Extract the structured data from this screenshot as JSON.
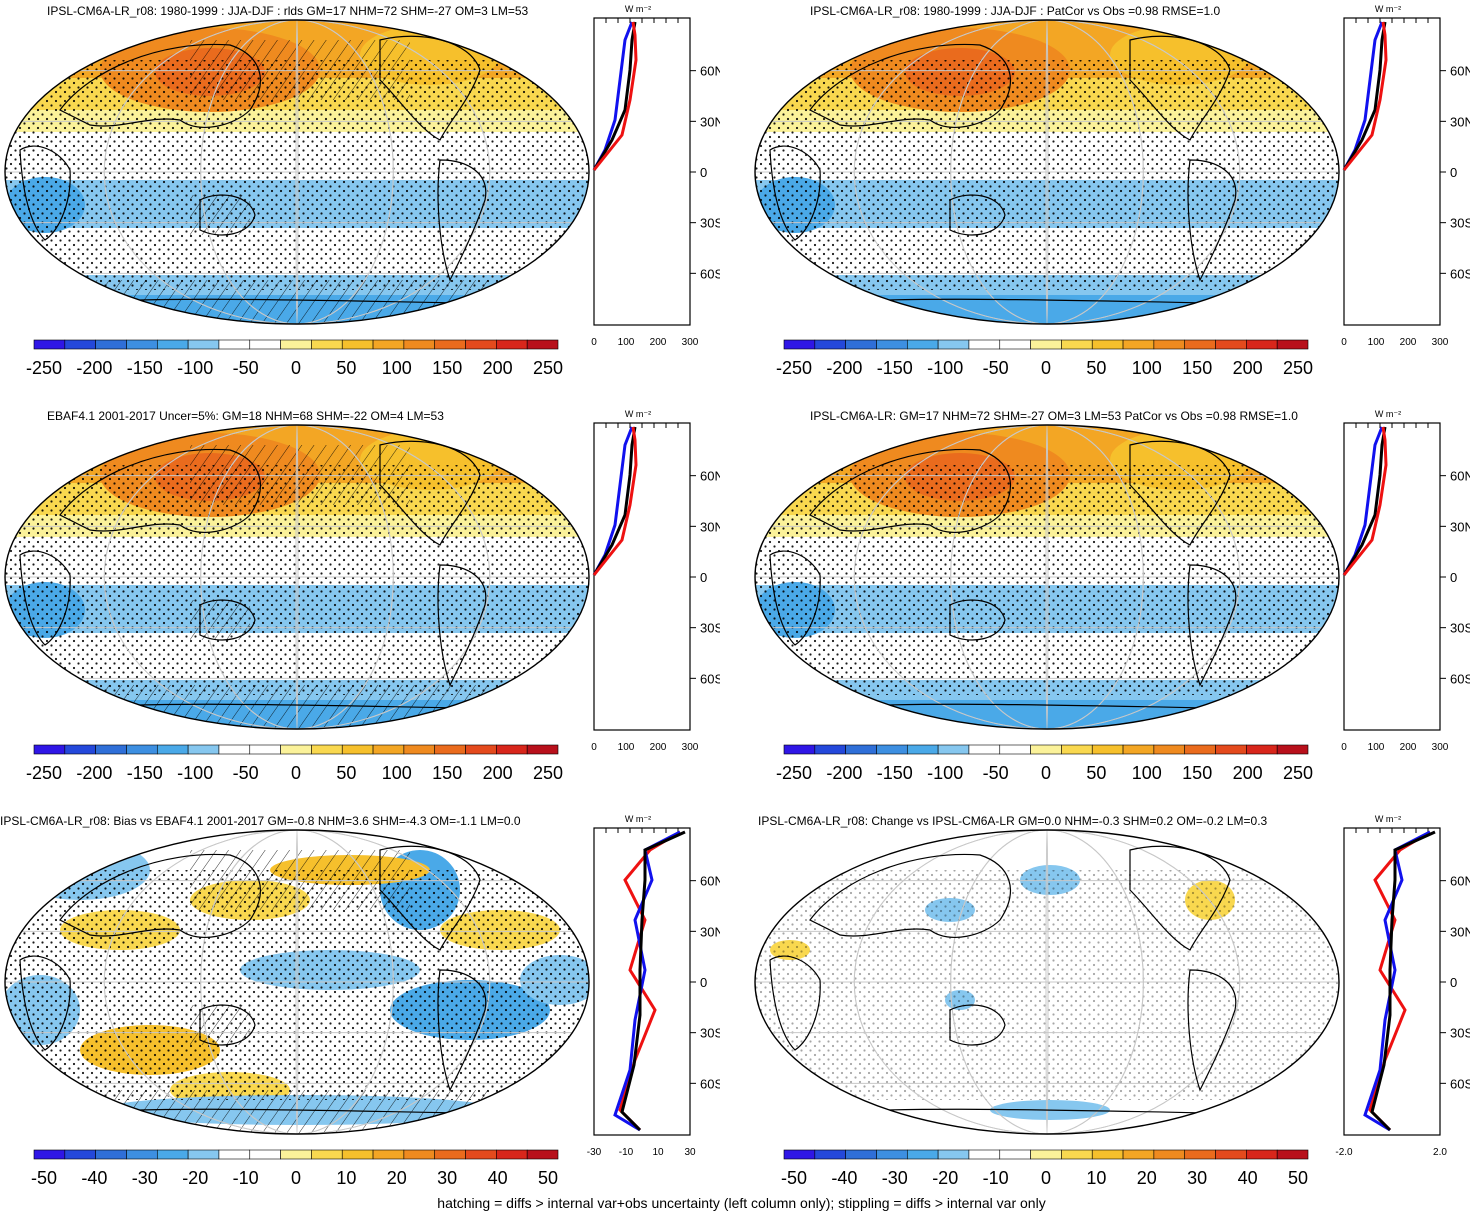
{
  "panels": [
    {
      "title": "IPSL-CM6A-LR_r08: 1980-1999 : JJA-DJF : rlds GM=17 NHM=72 SHM=-27 OM=3 LM=53",
      "colorbar": [
        "-250",
        "-200",
        "-150",
        "-100",
        "-50",
        "0",
        "50",
        "100",
        "150",
        "200",
        "250"
      ],
      "profile_xticks": [
        "0",
        "100",
        "200",
        "300"
      ]
    },
    {
      "title": "IPSL-CM6A-LR_r08: 1980-1999 : JJA-DJF : PatCor vs Obs =0.98 RMSE=1.0",
      "colorbar": [
        "-250",
        "-200",
        "-150",
        "-100",
        "-50",
        "0",
        "50",
        "100",
        "150",
        "200",
        "250"
      ],
      "profile_xticks": [
        "0",
        "100",
        "200",
        "300"
      ]
    },
    {
      "title": "EBAF4.1 2001-2017 Uncer=5%: GM=18 NHM=68 SHM=-22 OM=4 LM=53",
      "colorbar": [
        "-250",
        "-200",
        "-150",
        "-100",
        "-50",
        "0",
        "50",
        "100",
        "150",
        "200",
        "250"
      ],
      "profile_xticks": [
        "0",
        "100",
        "200",
        "300"
      ]
    },
    {
      "title": "IPSL-CM6A-LR: GM=17 NHM=72 SHM=-27 OM=3 LM=53 PatCor vs Obs =0.98 RMSE=1.0",
      "colorbar": [
        "-250",
        "-200",
        "-150",
        "-100",
        "-50",
        "0",
        "50",
        "100",
        "150",
        "200",
        "250"
      ],
      "profile_xticks": [
        "0",
        "100",
        "200",
        "300"
      ]
    },
    {
      "title": "IPSL-CM6A-LR_r08: Bias vs EBAF4.1 2001-2017 GM=-0.8 NHM=3.6 SHM=-4.3 OM=-1.1 LM=0.0",
      "colorbar": [
        "-50",
        "-40",
        "-30",
        "-20",
        "-10",
        "0",
        "10",
        "20",
        "30",
        "40",
        "50"
      ],
      "profile_xticks": [
        "-30",
        "-10",
        "10",
        "30"
      ]
    },
    {
      "title": "IPSL-CM6A-LR_r08: Change vs IPSL-CM6A-LR GM=0.0 NHM=-0.3 SHM=0.2 OM=-0.2 LM=0.3",
      "colorbar": [
        "-50",
        "-40",
        "-30",
        "-20",
        "-10",
        "0",
        "10",
        "20",
        "30",
        "40",
        "50"
      ],
      "profile_xticks": [
        "-2.0",
        "2.0"
      ]
    }
  ],
  "profile_unit": "W m⁻²",
  "lat_labels": [
    "60N",
    "30N",
    "0",
    "30S",
    "60S"
  ],
  "footer": "hatching = diffs > internal var+obs uncertainty (left column only); stippling = diffs > internal var only",
  "colors": {
    "scale": [
      "#2f16e6",
      "#2448db",
      "#2f6fd8",
      "#3d8fe1",
      "#4aa9e8",
      "#86c7ef",
      "#ffffff",
      "#ffffff",
      "#fbf29a",
      "#f9d84f",
      "#f6c02c",
      "#f3a624",
      "#ef8a1f",
      "#ea6b1d",
      "#e44a1d",
      "#d8261b",
      "#b8101b"
    ],
    "profile_model": "#000000",
    "profile_nh": "#ee1111",
    "profile_sh": "#1111ee"
  }
}
